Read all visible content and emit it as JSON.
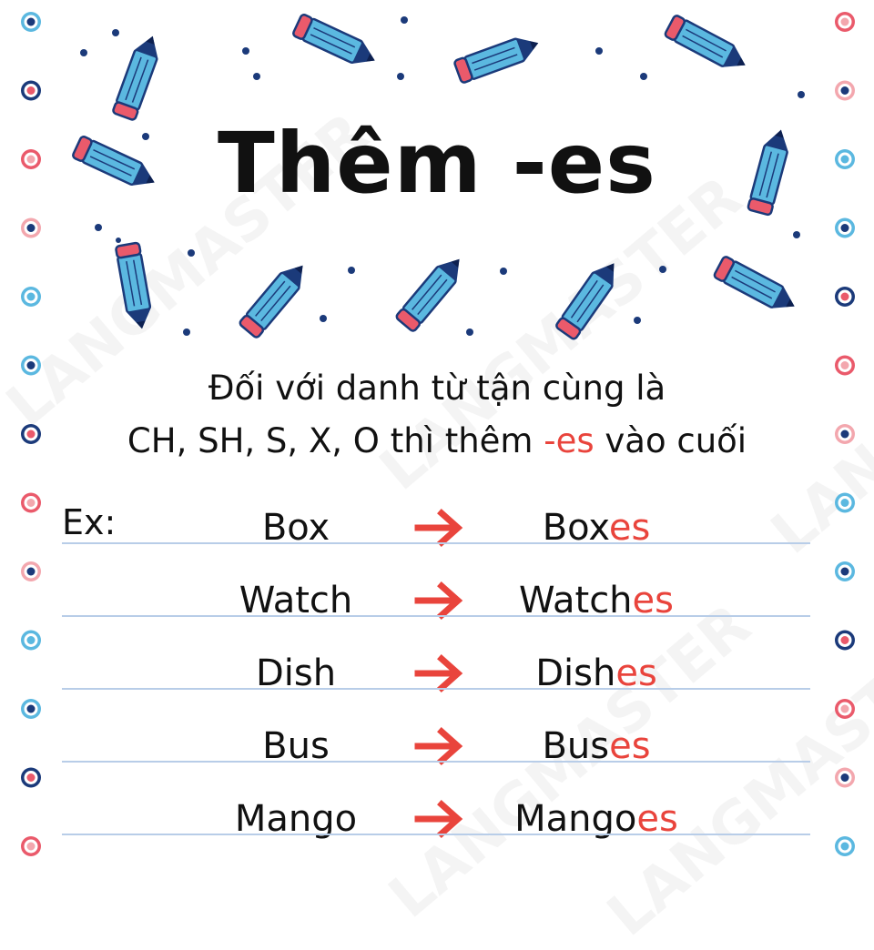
{
  "title": "Thêm -es",
  "description": {
    "line1": "Đối với danh từ tận cùng là",
    "line2_before": "CH, SH, S, X, O thì thêm ",
    "line2_highlight": "-es",
    "line2_after": " vào cuối"
  },
  "example_label": "Ex:",
  "examples": [
    {
      "base": "Box",
      "stem": "Box",
      "suffix": "es"
    },
    {
      "base": "Watch",
      "stem": "Watch",
      "suffix": "es"
    },
    {
      "base": "Dish",
      "stem": "Dish",
      "suffix": "es"
    },
    {
      "base": "Bus",
      "stem": "Bus",
      "suffix": "es"
    },
    {
      "base": "Mango",
      "stem": "Mango",
      "suffix": "es"
    }
  ],
  "watermark": "LANGMASTER",
  "colors": {
    "accent_red": "#e9443c",
    "pencil_blue": "#5bb8e0",
    "pencil_pink": "#ea5a6b",
    "navy": "#1b3a7a",
    "rule_blue": "#b8cde8"
  }
}
